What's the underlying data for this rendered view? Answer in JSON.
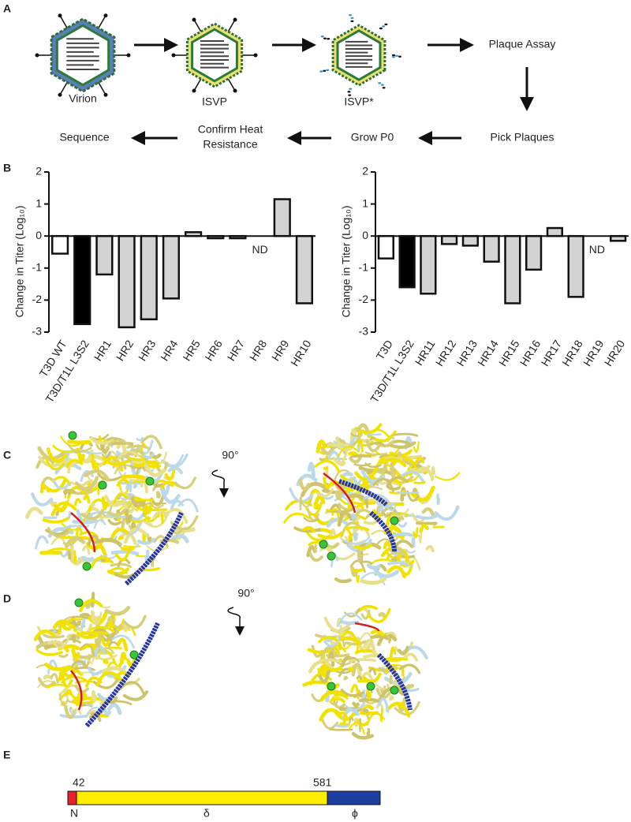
{
  "panels": {
    "a": "A",
    "b": "B",
    "c": "C",
    "d": "D",
    "e": "E"
  },
  "flow": {
    "virion": "Virion",
    "isvp": "ISVP",
    "isvp_star": "ISVP*",
    "plaque_assay": "Plaque Assay",
    "pick_plaques": "Pick Plaques",
    "grow_p0": "Grow P0",
    "confirm_heat": "Confirm Heat",
    "resistance": "Resistance",
    "sequence": "Sequence"
  },
  "rotation": {
    "c": "90°",
    "d": "90°"
  },
  "domains": {
    "boundary_1": 42,
    "boundary_2": 581,
    "n_label": "N",
    "delta": "δ",
    "phi": "ϕ"
  },
  "chart_data": [
    {
      "type": "bar",
      "ylabel": "Change in Titer (Log₁₀)",
      "categories": [
        "T3D WT",
        "T3D/T1L L3S2",
        "HR1",
        "HR2",
        "HR3",
        "HR4",
        "HR5",
        "HR6",
        "HR7",
        "HR8",
        "HR9",
        "HR10"
      ],
      "values": [
        -0.55,
        -2.75,
        -1.2,
        -2.85,
        -2.6,
        -1.95,
        0.12,
        -0.07,
        -0.07,
        null,
        1.15,
        -2.1
      ],
      "colors": [
        "#ffffff",
        "#000000",
        "#d3d3d3",
        "#d3d3d3",
        "#d3d3d3",
        "#d3d3d3",
        "#d3d3d3",
        "#d3d3d3",
        "#d3d3d3",
        "#d3d3d3",
        "#d3d3d3",
        "#d3d3d3"
      ],
      "ylim": [
        -3,
        2
      ],
      "yticks": [
        -3,
        -2,
        -1,
        0,
        1,
        2
      ],
      "annotation": "ND"
    },
    {
      "type": "bar",
      "ylabel": "Change in Titer (Log₁₀)",
      "categories": [
        "T3D",
        "T3D/T1L L3S2",
        "HR11",
        "HR12",
        "HR13",
        "HR14",
        "HR15",
        "HR16",
        "HR17",
        "HR18",
        "HR19",
        "HR20"
      ],
      "values": [
        -0.7,
        -1.6,
        -1.8,
        -0.25,
        -0.3,
        -0.8,
        -2.1,
        -1.05,
        0.25,
        -1.9,
        null,
        -0.15
      ],
      "colors": [
        "#ffffff",
        "#000000",
        "#d3d3d3",
        "#d3d3d3",
        "#d3d3d3",
        "#d3d3d3",
        "#d3d3d3",
        "#d3d3d3",
        "#d3d3d3",
        "#d3d3d3",
        "#d3d3d3",
        "#d3d3d3"
      ],
      "ylim": [
        -3,
        2
      ],
      "yticks": [
        -3,
        -2,
        -1,
        0,
        1,
        2
      ],
      "annotation": "ND"
    }
  ]
}
